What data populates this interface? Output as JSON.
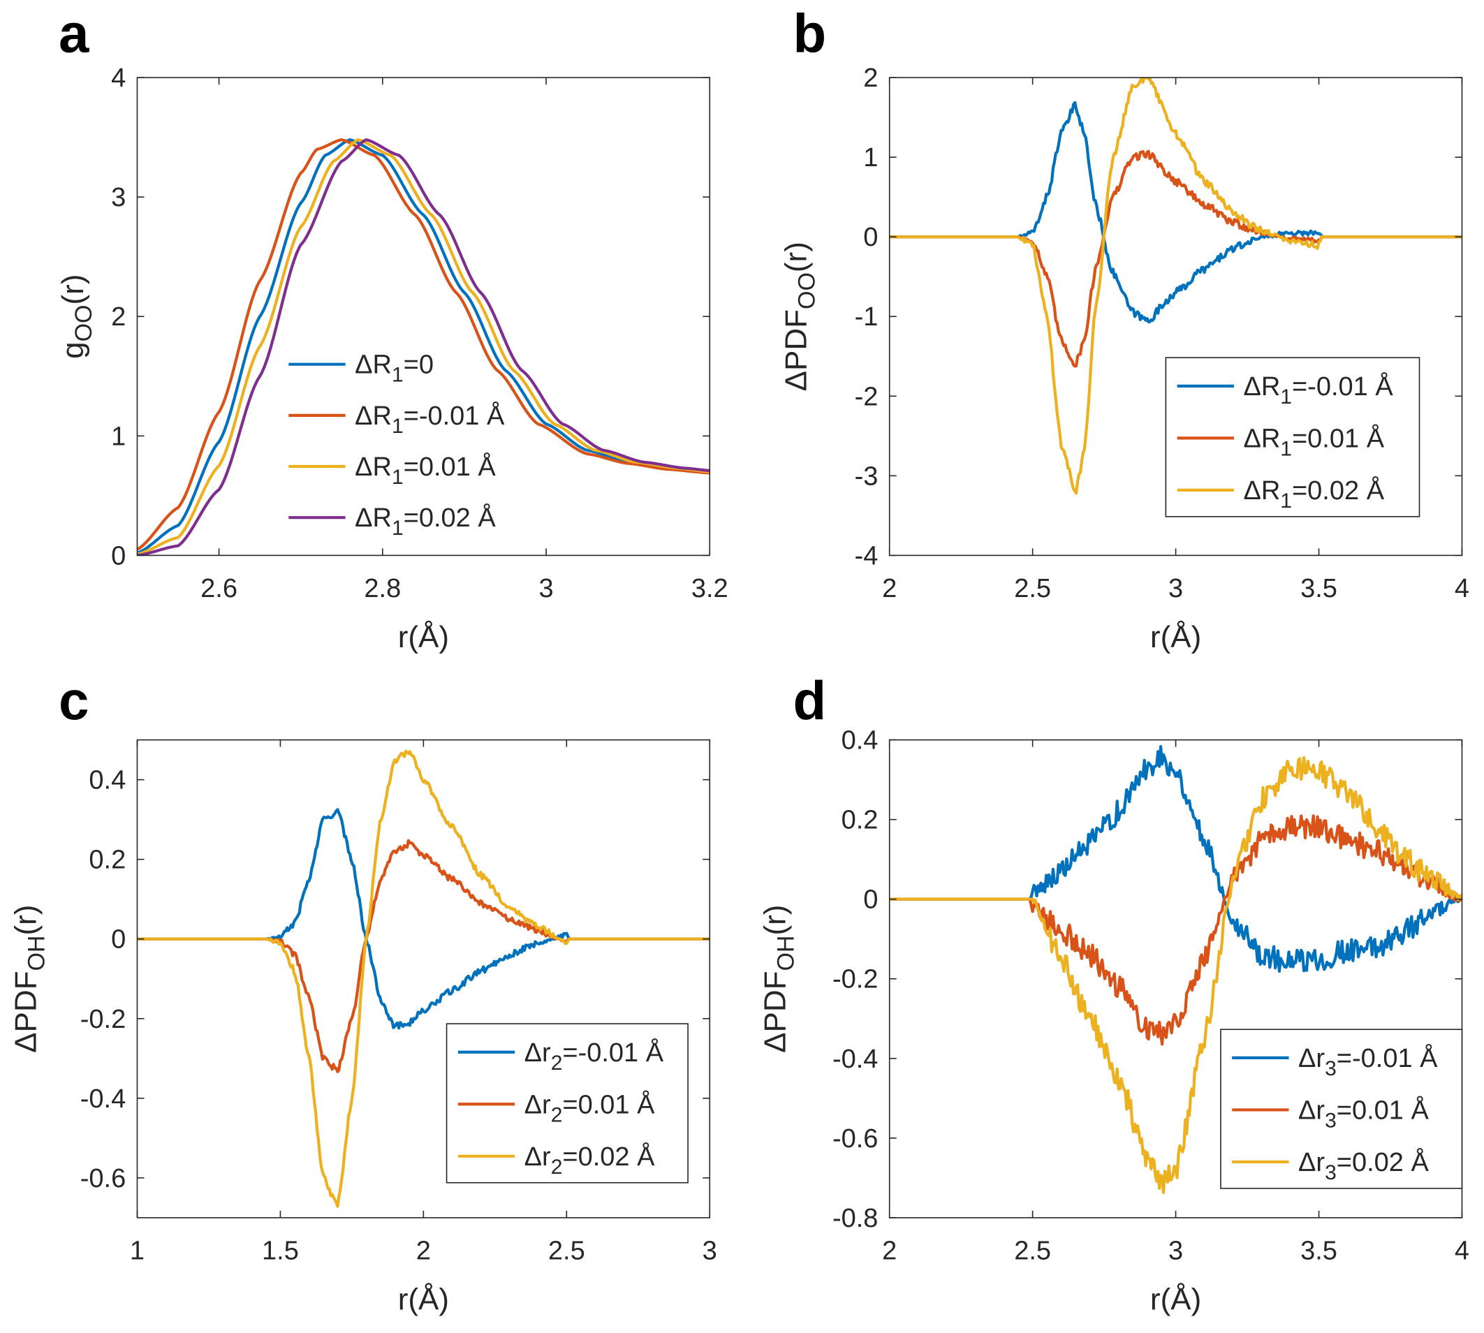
{
  "figure": {
    "panels": [
      "a",
      "b",
      "c",
      "d"
    ],
    "x_unit_label": "r(Å)"
  },
  "chart_data": [
    {
      "panel": "a",
      "type": "line",
      "xlabel": "r(Å)",
      "ylabel": {
        "base": "g",
        "sub": "OO",
        "tail": "(r)"
      },
      "xlim": [
        2.5,
        3.2
      ],
      "ylim": [
        0,
        4
      ],
      "xticks": [
        2.6,
        2.8,
        3.0,
        3.2
      ],
      "xtick_labels": [
        "2.6",
        "2.8",
        "3",
        "3.2"
      ],
      "yticks": [
        0,
        1,
        2,
        3,
        4
      ],
      "ytick_labels": [
        "0",
        "1",
        "2",
        "3",
        "4"
      ],
      "legend_position": "center",
      "series": [
        {
          "name": "ΔR1=0",
          "label": {
            "pre": "ΔR",
            "sub": "1",
            "post": "=0"
          },
          "color": "#0072BD",
          "noise": 0,
          "x": [
            2.5,
            2.55,
            2.6,
            2.65,
            2.7,
            2.73,
            2.76,
            2.8,
            2.85,
            2.9,
            2.95,
            3.0,
            3.05,
            3.1,
            3.15,
            3.2
          ],
          "y": [
            0.02,
            0.25,
            0.95,
            2.0,
            2.95,
            3.35,
            3.48,
            3.35,
            2.85,
            2.2,
            1.55,
            1.1,
            0.88,
            0.78,
            0.73,
            0.7
          ]
        },
        {
          "name": "ΔR1=-0.01 Å",
          "label": {
            "pre": "ΔR",
            "sub": "1",
            "post": "=-0.01 Å"
          },
          "color": "#D95319",
          "noise": 0,
          "x": [
            2.5,
            2.55,
            2.6,
            2.65,
            2.7,
            2.72,
            2.75,
            2.79,
            2.84,
            2.89,
            2.94,
            2.99,
            3.05,
            3.1,
            3.15,
            3.2
          ],
          "y": [
            0.05,
            0.4,
            1.2,
            2.3,
            3.2,
            3.4,
            3.48,
            3.35,
            2.85,
            2.2,
            1.55,
            1.1,
            0.85,
            0.77,
            0.72,
            0.69
          ]
        },
        {
          "name": "ΔR1=0.01 Å",
          "label": {
            "pre": "ΔR",
            "sub": "1",
            "post": "=0.01 Å"
          },
          "color": "#EDB120",
          "noise": 0,
          "x": [
            2.5,
            2.55,
            2.6,
            2.65,
            2.7,
            2.74,
            2.77,
            2.81,
            2.86,
            2.91,
            2.96,
            3.01,
            3.06,
            3.11,
            3.16,
            3.2
          ],
          "y": [
            0.01,
            0.15,
            0.75,
            1.75,
            2.75,
            3.3,
            3.48,
            3.35,
            2.85,
            2.2,
            1.55,
            1.1,
            0.88,
            0.78,
            0.73,
            0.7
          ]
        },
        {
          "name": "ΔR1=0.02 Å",
          "label": {
            "pre": "ΔR",
            "sub": "1",
            "post": "=0.02 Å"
          },
          "color": "#7E2F8E",
          "noise": 0,
          "x": [
            2.5,
            2.55,
            2.6,
            2.65,
            2.7,
            2.75,
            2.78,
            2.82,
            2.87,
            2.92,
            2.97,
            3.02,
            3.07,
            3.12,
            3.17,
            3.2
          ],
          "y": [
            0.0,
            0.08,
            0.55,
            1.5,
            2.6,
            3.3,
            3.48,
            3.35,
            2.85,
            2.2,
            1.55,
            1.1,
            0.88,
            0.78,
            0.73,
            0.71
          ]
        }
      ]
    },
    {
      "panel": "b",
      "type": "line",
      "xlabel": "r(Å)",
      "ylabel": {
        "base": "ΔPDF",
        "sub": "OO",
        "tail": "(r)"
      },
      "xlim": [
        2,
        4
      ],
      "ylim": [
        -4,
        2
      ],
      "xticks": [
        2,
        2.5,
        3,
        3.5,
        4
      ],
      "xtick_labels": [
        "2",
        "2.5",
        "3",
        "3.5",
        "4"
      ],
      "yticks": [
        -4,
        -3,
        -2,
        -1,
        0,
        1,
        2
      ],
      "ytick_labels": [
        "-4",
        "-3",
        "-2",
        "-1",
        "0",
        "1",
        "2"
      ],
      "legend_position": "lower-right",
      "series": [
        {
          "name": "ΔR1=-0.01 Å",
          "label": {
            "pre": "ΔR",
            "sub": "1",
            "post": "=-0.01 Å"
          },
          "color": "#0072BD",
          "noise": 0.05,
          "x": [
            2.0,
            2.45,
            2.5,
            2.55,
            2.6,
            2.65,
            2.68,
            2.72,
            2.78,
            2.85,
            2.9,
            3.0,
            3.1,
            3.2,
            3.3,
            3.4,
            3.5,
            3.51,
            4.0
          ],
          "y": [
            0,
            0,
            0.05,
            0.5,
            1.3,
            1.65,
            1.3,
            0.4,
            -0.45,
            -0.95,
            -1.05,
            -0.7,
            -0.4,
            -0.15,
            0.0,
            0.05,
            0.05,
            0,
            0
          ]
        },
        {
          "name": "ΔR1=0.01 Å",
          "label": {
            "pre": "ΔR",
            "sub": "1",
            "post": "=0.01 Å"
          },
          "color": "#D95319",
          "noise": 0.05,
          "x": [
            2.0,
            2.45,
            2.5,
            2.55,
            2.6,
            2.65,
            2.68,
            2.72,
            2.78,
            2.85,
            2.9,
            3.0,
            3.1,
            3.2,
            3.3,
            3.4,
            3.5,
            3.51,
            4.0
          ],
          "y": [
            0,
            0,
            -0.05,
            -0.5,
            -1.3,
            -1.6,
            -1.3,
            -0.4,
            0.5,
            1.0,
            1.05,
            0.7,
            0.4,
            0.18,
            0.05,
            -0.02,
            -0.05,
            0,
            0
          ]
        },
        {
          "name": "ΔR1=0.02 Å",
          "label": {
            "pre": "ΔR",
            "sub": "1",
            "post": "=0.02 Å"
          },
          "color": "#EDB120",
          "noise": 0.05,
          "x": [
            2.0,
            2.45,
            2.5,
            2.55,
            2.6,
            2.65,
            2.68,
            2.72,
            2.78,
            2.85,
            2.9,
            3.0,
            3.1,
            3.2,
            3.3,
            3.4,
            3.5,
            3.51,
            4.0
          ],
          "y": [
            0,
            0,
            -0.1,
            -1.0,
            -2.6,
            -3.2,
            -2.7,
            -0.9,
            1.0,
            1.9,
            2.0,
            1.3,
            0.7,
            0.3,
            0.08,
            -0.05,
            -0.1,
            0,
            0
          ]
        }
      ]
    },
    {
      "panel": "c",
      "type": "line",
      "xlabel": "r(Å)",
      "ylabel": {
        "base": "ΔPDF",
        "sub": "OH",
        "tail": "(r)"
      },
      "xlim": [
        1,
        3
      ],
      "ylim": [
        -0.7,
        0.5
      ],
      "xticks": [
        1,
        1.5,
        2,
        2.5,
        3
      ],
      "xtick_labels": [
        "1",
        "1.5",
        "2",
        "2.5",
        "3"
      ],
      "yticks": [
        -0.6,
        -0.4,
        -0.2,
        0,
        0.2,
        0.4
      ],
      "ytick_labels": [
        "-0.6",
        "-0.4",
        "-0.2",
        "0",
        "0.2",
        "0.4"
      ],
      "legend_position": "lower-right",
      "series": [
        {
          "name": "Δr2=-0.01 Å",
          "label": {
            "pre": "Δr",
            "sub": "2",
            "post": "=-0.01 Å"
          },
          "color": "#0072BD",
          "noise": 0.008,
          "x": [
            1.0,
            1.45,
            1.5,
            1.55,
            1.6,
            1.65,
            1.7,
            1.75,
            1.8,
            1.85,
            1.9,
            1.95,
            2.0,
            2.1,
            2.2,
            2.3,
            2.4,
            2.5,
            2.51,
            3.0
          ],
          "y": [
            0,
            0,
            0.005,
            0.04,
            0.15,
            0.3,
            0.32,
            0.2,
            0.0,
            -0.15,
            -0.22,
            -0.21,
            -0.18,
            -0.13,
            -0.08,
            -0.04,
            -0.01,
            0.01,
            0,
            0
          ]
        },
        {
          "name": "Δr2=0.01 Å",
          "label": {
            "pre": "Δr",
            "sub": "2",
            "post": "=0.01 Å"
          },
          "color": "#D95319",
          "noise": 0.008,
          "x": [
            1.0,
            1.45,
            1.5,
            1.55,
            1.6,
            1.65,
            1.7,
            1.75,
            1.8,
            1.85,
            1.9,
            1.95,
            2.0,
            2.1,
            2.2,
            2.3,
            2.4,
            2.5,
            2.51,
            3.0
          ],
          "y": [
            0,
            0,
            -0.005,
            -0.04,
            -0.15,
            -0.3,
            -0.33,
            -0.2,
            0.0,
            0.15,
            0.22,
            0.24,
            0.21,
            0.15,
            0.09,
            0.05,
            0.02,
            -0.005,
            0,
            0
          ]
        },
        {
          "name": "Δr2=0.02 Å",
          "label": {
            "pre": "Δr",
            "sub": "2",
            "post": "=0.02 Å"
          },
          "color": "#EDB120",
          "noise": 0.008,
          "x": [
            1.0,
            1.45,
            1.5,
            1.55,
            1.6,
            1.65,
            1.7,
            1.75,
            1.8,
            1.85,
            1.9,
            1.95,
            2.0,
            2.1,
            2.2,
            2.3,
            2.4,
            2.5,
            2.51,
            3.0
          ],
          "y": [
            0,
            0,
            -0.01,
            -0.08,
            -0.3,
            -0.6,
            -0.67,
            -0.4,
            0.0,
            0.3,
            0.45,
            0.47,
            0.4,
            0.28,
            0.16,
            0.08,
            0.03,
            -0.01,
            0,
            0
          ]
        }
      ]
    },
    {
      "panel": "d",
      "type": "line",
      "xlabel": "r(Å)",
      "ylabel": {
        "base": "ΔPDF",
        "sub": "OH",
        "tail": "(r)"
      },
      "xlim": [
        2,
        4
      ],
      "ylim": [
        -0.8,
        0.4
      ],
      "xticks": [
        2,
        2.5,
        3,
        3.5,
        4
      ],
      "xtick_labels": [
        "2",
        "2.5",
        "3",
        "3.5",
        "4"
      ],
      "yticks": [
        -0.8,
        -0.6,
        -0.4,
        -0.2,
        0,
        0.2,
        0.4
      ],
      "ytick_labels": [
        "-0.8",
        "-0.6",
        "-0.4",
        "-0.2",
        "0",
        "0.2",
        "0.4"
      ],
      "legend_position": "lower-right",
      "series": [
        {
          "name": "Δr3=-0.01 Å",
          "label": {
            "pre": "Δr",
            "sub": "3",
            "post": "=-0.01 Å"
          },
          "color": "#0072BD",
          "noise": 0.03,
          "x": [
            2.0,
            2.49,
            2.5,
            2.6,
            2.7,
            2.8,
            2.9,
            2.95,
            3.0,
            3.1,
            3.2,
            3.3,
            3.4,
            3.5,
            3.6,
            3.7,
            3.8,
            3.9,
            4.0
          ],
          "y": [
            0,
            0,
            0.02,
            0.07,
            0.14,
            0.22,
            0.33,
            0.36,
            0.32,
            0.15,
            -0.05,
            -0.14,
            -0.16,
            -0.15,
            -0.13,
            -0.12,
            -0.08,
            -0.03,
            0.0
          ]
        },
        {
          "name": "Δr3=0.01 Å",
          "label": {
            "pre": "Δr",
            "sub": "3",
            "post": "=0.01 Å"
          },
          "color": "#D95319",
          "noise": 0.03,
          "x": [
            2.0,
            2.49,
            2.5,
            2.6,
            2.7,
            2.8,
            2.9,
            2.95,
            3.0,
            3.1,
            3.2,
            3.3,
            3.4,
            3.5,
            3.6,
            3.7,
            3.8,
            3.9,
            4.0
          ],
          "y": [
            0,
            0,
            -0.02,
            -0.08,
            -0.14,
            -0.22,
            -0.32,
            -0.34,
            -0.3,
            -0.15,
            0.05,
            0.15,
            0.18,
            0.18,
            0.15,
            0.12,
            0.08,
            0.04,
            0.0
          ]
        },
        {
          "name": "Δr3=0.02 Å",
          "label": {
            "pre": "Δr",
            "sub": "3",
            "post": "=0.02 Å"
          },
          "color": "#EDB120",
          "noise": 0.03,
          "x": [
            2.0,
            2.49,
            2.5,
            2.6,
            2.7,
            2.8,
            2.9,
            2.95,
            3.0,
            3.1,
            3.2,
            3.3,
            3.4,
            3.5,
            3.6,
            3.7,
            3.8,
            3.9,
            4.0
          ],
          "y": [
            0,
            0,
            0.0,
            -0.15,
            -0.3,
            -0.45,
            -0.65,
            -0.72,
            -0.68,
            -0.35,
            0.05,
            0.25,
            0.33,
            0.32,
            0.27,
            0.18,
            0.1,
            0.05,
            0.0
          ]
        }
      ]
    }
  ]
}
